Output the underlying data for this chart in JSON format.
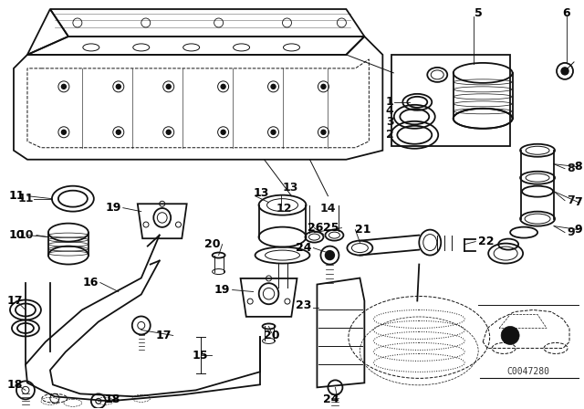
{
  "bg_color": "#ffffff",
  "line_color": "#111111",
  "label_color": "#000000",
  "watermark": "C0047280",
  "font_size": 9,
  "bold_font_size": 10,
  "lw_main": 1.3,
  "lw_thin": 0.7,
  "lw_thick": 2.0
}
